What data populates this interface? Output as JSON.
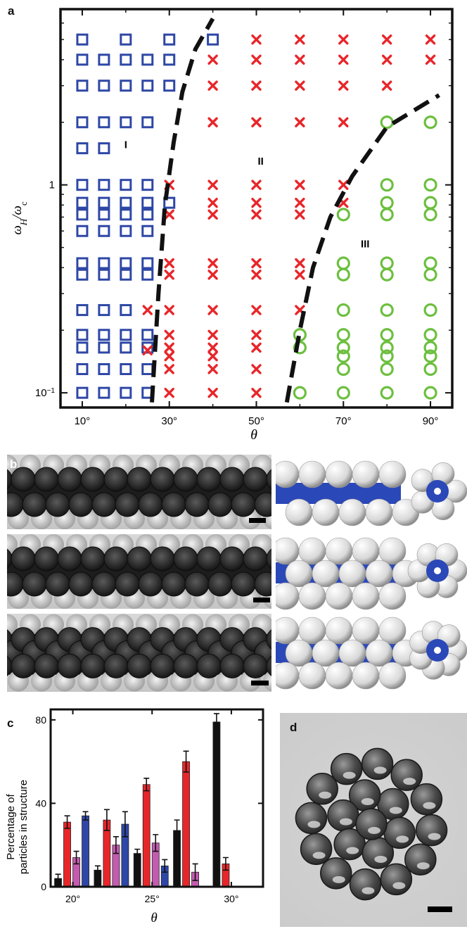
{
  "panels": {
    "a": "a",
    "b": "b",
    "c": "c",
    "d": "d"
  },
  "colors": {
    "square": "#2e47a6",
    "cross": "#e8262a",
    "circle": "#6cbf3f",
    "bar_black": "#111111",
    "bar_red": "#e8262a",
    "bar_magenta": "#c45bb0",
    "bar_blue": "#2e47a6",
    "tube": "#2b48b8",
    "sphere": "#e6e6e6"
  },
  "chart_data": [
    {
      "type": "scatter",
      "panel": "a",
      "xlabel": "θ",
      "ylabel_main": "ω",
      "ylabel_sub1": "H",
      "ylabel_slash": "/ω",
      "ylabel_sub2": "c",
      "x_ticks": [
        {
          "v": 10,
          "label": "10°"
        },
        {
          "v": 30,
          "label": "30°"
        },
        {
          "v": 50,
          "label": "50°"
        },
        {
          "v": 70,
          "label": "70°"
        },
        {
          "v": 90,
          "label": "90°"
        }
      ],
      "x_minor_ticks": [
        20,
        40,
        60,
        80
      ],
      "xlim": [
        5,
        95
      ],
      "y_scale": "log",
      "ylim": [
        0.085,
        7.0
      ],
      "y_ticks": [
        {
          "v": 1,
          "label": "1"
        },
        {
          "v": 0.1,
          "label": "10",
          "sup": "−1"
        }
      ],
      "region_labels": [
        {
          "text": "I",
          "x": 20,
          "y": 1.5
        },
        {
          "text": "II",
          "x": 51,
          "y": 1.25
        },
        {
          "text": "III",
          "x": 75,
          "y": 0.5
        }
      ],
      "boundaries": [
        {
          "x": [
            26,
            27.5,
            29,
            31,
            33,
            36,
            40
          ],
          "y": [
            0.09,
            0.3,
            0.8,
            1.6,
            2.8,
            4.5,
            6.3
          ]
        },
        {
          "x": [
            57,
            60,
            63,
            67,
            72,
            80,
            92
          ],
          "y": [
            0.09,
            0.2,
            0.4,
            0.7,
            1.1,
            1.9,
            2.7
          ]
        }
      ],
      "series": [
        {
          "marker": "square",
          "points": [
            [
              10,
              5
            ],
            [
              10,
              4
            ],
            [
              10,
              3
            ],
            [
              10,
              2
            ],
            [
              10,
              1.5
            ],
            [
              10,
              1
            ],
            [
              10,
              0.82
            ],
            [
              10,
              0.72
            ],
            [
              10,
              0.6
            ],
            [
              10,
              0.42
            ],
            [
              10,
              0.37
            ],
            [
              10,
              0.25
            ],
            [
              10,
              0.19
            ],
            [
              10,
              0.165
            ],
            [
              10,
              0.13
            ],
            [
              10,
              0.1
            ],
            [
              15,
              4
            ],
            [
              15,
              3
            ],
            [
              15,
              2
            ],
            [
              15,
              1.5
            ],
            [
              15,
              1
            ],
            [
              15,
              0.82
            ],
            [
              15,
              0.72
            ],
            [
              15,
              0.6
            ],
            [
              15,
              0.42
            ],
            [
              15,
              0.37
            ],
            [
              15,
              0.25
            ],
            [
              15,
              0.19
            ],
            [
              15,
              0.165
            ],
            [
              15,
              0.13
            ],
            [
              15,
              0.1
            ],
            [
              20,
              5
            ],
            [
              20,
              4
            ],
            [
              20,
              3
            ],
            [
              20,
              2
            ],
            [
              20,
              1
            ],
            [
              20,
              0.82
            ],
            [
              20,
              0.72
            ],
            [
              20,
              0.6
            ],
            [
              20,
              0.42
            ],
            [
              20,
              0.37
            ],
            [
              20,
              0.25
            ],
            [
              20,
              0.19
            ],
            [
              20,
              0.165
            ],
            [
              20,
              0.13
            ],
            [
              20,
              0.1
            ],
            [
              25,
              4
            ],
            [
              25,
              3
            ],
            [
              25,
              2
            ],
            [
              25,
              1
            ],
            [
              25,
              0.82
            ],
            [
              25,
              0.72
            ],
            [
              25,
              0.6
            ],
            [
              25,
              0.42
            ],
            [
              25,
              0.37
            ],
            [
              25,
              0.19
            ],
            [
              25,
              0.165
            ],
            [
              25,
              0.13
            ],
            [
              25,
              0.1
            ],
            [
              30,
              5
            ],
            [
              30,
              4
            ],
            [
              30,
              3
            ],
            [
              30,
              0.82
            ],
            [
              40,
              5
            ]
          ]
        },
        {
          "marker": "cross",
          "points": [
            [
              25,
              0.25
            ],
            [
              25,
              0.16
            ],
            [
              30,
              1
            ],
            [
              30,
              0.72
            ],
            [
              30,
              0.42
            ],
            [
              30,
              0.37
            ],
            [
              30,
              0.25
            ],
            [
              30,
              0.19
            ],
            [
              30,
              0.165
            ],
            [
              30,
              0.15
            ],
            [
              30,
              0.13
            ],
            [
              30,
              0.1
            ],
            [
              40,
              4
            ],
            [
              40,
              3
            ],
            [
              40,
              2
            ],
            [
              40,
              1
            ],
            [
              40,
              0.82
            ],
            [
              40,
              0.72
            ],
            [
              40,
              0.42
            ],
            [
              40,
              0.37
            ],
            [
              40,
              0.25
            ],
            [
              40,
              0.19
            ],
            [
              40,
              0.165
            ],
            [
              40,
              0.15
            ],
            [
              40,
              0.13
            ],
            [
              40,
              0.1
            ],
            [
              50,
              5
            ],
            [
              50,
              4
            ],
            [
              50,
              3
            ],
            [
              50,
              2
            ],
            [
              50,
              1
            ],
            [
              50,
              0.82
            ],
            [
              50,
              0.72
            ],
            [
              50,
              0.42
            ],
            [
              50,
              0.37
            ],
            [
              50,
              0.25
            ],
            [
              50,
              0.19
            ],
            [
              50,
              0.165
            ],
            [
              50,
              0.13
            ],
            [
              50,
              0.1
            ],
            [
              60,
              5
            ],
            [
              60,
              4
            ],
            [
              60,
              3
            ],
            [
              60,
              2
            ],
            [
              60,
              1
            ],
            [
              60,
              0.82
            ],
            [
              60,
              0.72
            ],
            [
              60,
              0.42
            ],
            [
              60,
              0.37
            ],
            [
              60,
              0.25
            ],
            [
              70,
              5
            ],
            [
              70,
              4
            ],
            [
              70,
              3
            ],
            [
              70,
              2
            ],
            [
              70,
              1
            ],
            [
              70,
              0.82
            ],
            [
              80,
              5
            ],
            [
              80,
              4
            ],
            [
              80,
              3
            ],
            [
              90,
              5
            ],
            [
              90,
              4
            ]
          ]
        },
        {
          "marker": "circle",
          "points": [
            [
              60,
              0.19
            ],
            [
              60,
              0.165
            ],
            [
              60,
              0.1
            ],
            [
              70,
              0.72
            ],
            [
              70,
              0.42
            ],
            [
              70,
              0.37
            ],
            [
              70,
              0.25
            ],
            [
              70,
              0.19
            ],
            [
              70,
              0.165
            ],
            [
              70,
              0.15
            ],
            [
              70,
              0.13
            ],
            [
              70,
              0.1
            ],
            [
              80,
              2
            ],
            [
              80,
              1
            ],
            [
              80,
              0.82
            ],
            [
              80,
              0.72
            ],
            [
              80,
              0.42
            ],
            [
              80,
              0.37
            ],
            [
              80,
              0.25
            ],
            [
              80,
              0.19
            ],
            [
              80,
              0.165
            ],
            [
              80,
              0.15
            ],
            [
              80,
              0.13
            ],
            [
              80,
              0.1
            ],
            [
              90,
              2
            ],
            [
              90,
              1
            ],
            [
              90,
              0.82
            ],
            [
              90,
              0.72
            ],
            [
              90,
              0.42
            ],
            [
              90,
              0.37
            ],
            [
              90,
              0.25
            ],
            [
              90,
              0.19
            ],
            [
              90,
              0.165
            ],
            [
              90,
              0.15
            ],
            [
              90,
              0.13
            ],
            [
              90,
              0.1
            ]
          ]
        }
      ]
    },
    {
      "type": "bar",
      "panel": "c",
      "ylabel_line1": "Percentage of",
      "ylabel_line2": "particles in structure",
      "xlabel": "θ",
      "ylim": [
        0,
        85
      ],
      "y_ticks": [
        0,
        40,
        80
      ],
      "x_ticks": [
        {
          "v": 20,
          "label": "20°"
        },
        {
          "v": 25,
          "label": "25°"
        },
        {
          "v": 30,
          "label": "30°"
        }
      ],
      "xlim": [
        18.6,
        32.0
      ],
      "groups": [
        {
          "x": 20.0,
          "bars": [
            {
              "c": "bar_black",
              "v": 4,
              "e": 2
            },
            {
              "c": "bar_red",
              "v": 31,
              "e": 3
            },
            {
              "c": "bar_magenta",
              "v": 14,
              "e": 3
            },
            {
              "c": "bar_blue",
              "v": 34,
              "e": 2
            }
          ]
        },
        {
          "x": 22.5,
          "bars": [
            {
              "c": "bar_black",
              "v": 8,
              "e": 2
            },
            {
              "c": "bar_red",
              "v": 32,
              "e": 5
            },
            {
              "c": "bar_magenta",
              "v": 20,
              "e": 4
            },
            {
              "c": "bar_blue",
              "v": 30,
              "e": 6
            }
          ]
        },
        {
          "x": 25.0,
          "bars": [
            {
              "c": "bar_black",
              "v": 16,
              "e": 2
            },
            {
              "c": "bar_red",
              "v": 49,
              "e": 3
            },
            {
              "c": "bar_magenta",
              "v": 21,
              "e": 4
            },
            {
              "c": "bar_blue",
              "v": 10,
              "e": 3
            }
          ]
        },
        {
          "x": 27.5,
          "bars": [
            {
              "c": "bar_black",
              "v": 27,
              "e": 5
            },
            {
              "c": "bar_red",
              "v": 60,
              "e": 5
            },
            {
              "c": "bar_magenta",
              "v": 7,
              "e": 4
            }
          ]
        },
        {
          "x": 30.0,
          "bars": [
            {
              "c": "bar_black",
              "v": 79,
              "e": 4
            },
            {
              "c": "bar_red",
              "v": 11,
              "e": 3
            }
          ]
        }
      ]
    }
  ]
}
